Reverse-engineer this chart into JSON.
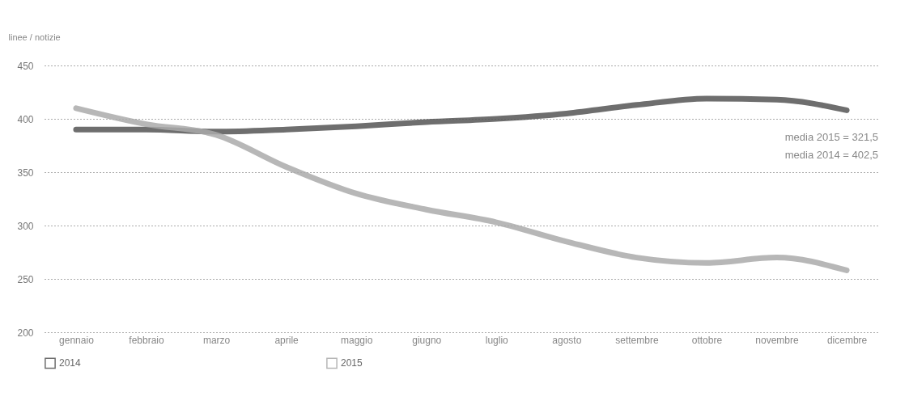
{
  "chart_data": {
    "type": "line",
    "ylabel": "linee / notizie",
    "categories": [
      "gennaio",
      "febbraio",
      "marzo",
      "aprile",
      "maggio",
      "giugno",
      "luglio",
      "agosto",
      "settembre",
      "ottobre",
      "novembre",
      "dicembre"
    ],
    "series": [
      {
        "name": "2014",
        "color": "#555555",
        "values": [
          390,
          390,
          388,
          390,
          393,
          397,
          400,
          405,
          413,
          419,
          418,
          408
        ]
      },
      {
        "name": "2015",
        "color": "#aaaaaa",
        "values": [
          410,
          395,
          385,
          355,
          330,
          315,
          303,
          285,
          270,
          265,
          270,
          258
        ]
      }
    ],
    "ylim": [
      200,
      450
    ],
    "yticks": [
      200,
      250,
      300,
      350,
      400,
      450
    ],
    "grid": "y",
    "legend": "bottom left",
    "marker": "none",
    "line_style": "solid",
    "annotations": [
      "media 2015 = 321,5",
      "media 2014 = 402,5"
    ]
  }
}
